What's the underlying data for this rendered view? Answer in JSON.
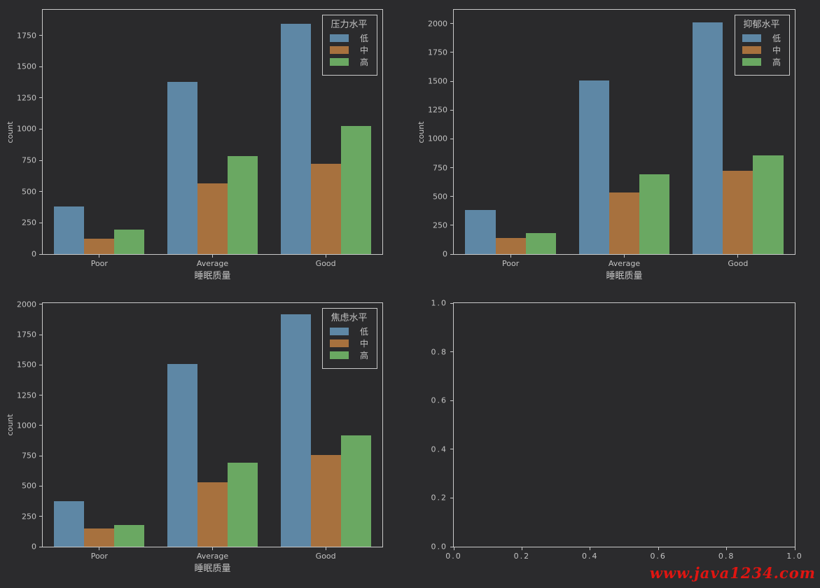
{
  "palette": [
    "#5e87a5",
    "#a7713e",
    "#6aa862"
  ],
  "spine_color": "#c9c9c9",
  "text_color": "#c3c3c3",
  "background_color": "#2b2b2d",
  "watermark": {
    "text": "www.java1234.com",
    "color": "#e01511"
  },
  "chart_data": [
    {
      "type": "bar",
      "legend_title": "压力水平",
      "categories": [
        "Poor",
        "Average",
        "Good"
      ],
      "series": [
        {
          "name": "低",
          "values": [
            380,
            1380,
            1845
          ]
        },
        {
          "name": "中",
          "values": [
            125,
            565,
            720
          ]
        },
        {
          "name": "高",
          "values": [
            195,
            785,
            1025
          ]
        }
      ],
      "xlabel": "睡眠质量",
      "ylabel": "count",
      "yticks": [
        0,
        250,
        500,
        750,
        1000,
        1250,
        1500,
        1750
      ],
      "ylim": [
        0,
        1955
      ],
      "legend_position": "upper right",
      "grid": false
    },
    {
      "type": "bar",
      "legend_title": "抑郁水平",
      "categories": [
        "Poor",
        "Average",
        "Good"
      ],
      "series": [
        {
          "name": "低",
          "values": [
            385,
            1505,
            2010
          ]
        },
        {
          "name": "中",
          "values": [
            140,
            535,
            725
          ]
        },
        {
          "name": "高",
          "values": [
            185,
            690,
            855
          ]
        }
      ],
      "xlabel": "睡眠质量",
      "ylabel": "count",
      "yticks": [
        0,
        250,
        500,
        750,
        1000,
        1250,
        1500,
        1750,
        2000
      ],
      "ylim": [
        0,
        2120
      ],
      "legend_position": "upper right",
      "grid": false
    },
    {
      "type": "bar",
      "legend_title": "焦虑水平",
      "categories": [
        "Poor",
        "Average",
        "Good"
      ],
      "series": [
        {
          "name": "低",
          "values": [
            375,
            1510,
            1915
          ]
        },
        {
          "name": "中",
          "values": [
            150,
            530,
            755
          ]
        },
        {
          "name": "高",
          "values": [
            180,
            695,
            920
          ]
        }
      ],
      "xlabel": "睡眠质量",
      "ylabel": "count",
      "yticks": [
        0,
        250,
        500,
        750,
        1000,
        1250,
        1500,
        2000
      ],
      "yticks_note": "ticks every 250 up to 2000",
      "yticks_full": [
        0,
        250,
        500,
        750,
        1000,
        1250,
        1500,
        1750,
        2000
      ],
      "ylim": [
        0,
        2010
      ],
      "legend_position": "upper right",
      "grid": false
    },
    {
      "type": "bar",
      "empty": true,
      "categories": null,
      "xlim": [
        0,
        1
      ],
      "ylim": [
        0,
        1
      ],
      "xticks": [
        0,
        0.2,
        0.4,
        0.6,
        0.8,
        1.0
      ],
      "xtick_labels": [
        "0.0",
        "0.2",
        "0.4",
        "0.6",
        "0.8",
        "1.0"
      ],
      "yticks": [
        0,
        0.2,
        0.4,
        0.6,
        0.8,
        1.0
      ],
      "ytick_labels": [
        "0.0",
        "0.2",
        "0.4",
        "0.6",
        "0.8",
        "1.0"
      ],
      "grid": false
    }
  ]
}
